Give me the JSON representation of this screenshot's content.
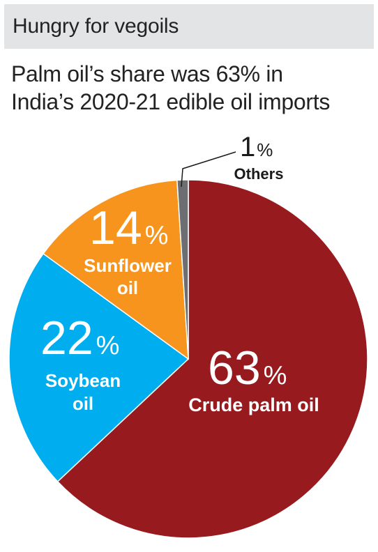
{
  "title": "Hungry for vegoils",
  "subtitle_line1": "Palm oil’s share was 63% in",
  "subtitle_line2": "India’s 2020-21 edible oil imports",
  "chart_data": {
    "type": "pie",
    "title": "Hungry for vegoils",
    "subtitle": "Palm oil’s share was 63% in India’s 2020-21 edible oil imports",
    "unit": "%",
    "slices": [
      {
        "label": "Crude palm oil",
        "value": 63,
        "value_label": "63",
        "color": "#971a1e"
      },
      {
        "label": "Soybean oil",
        "value": 22,
        "value_label": "22",
        "color": "#00adef"
      },
      {
        "label": "Sunflower oil",
        "value": 14,
        "value_label": "14",
        "color": "#f7941d"
      },
      {
        "label": "Others",
        "value": 1,
        "value_label": "1",
        "color": "#6d6e71"
      }
    ]
  },
  "labels": {
    "palm_value": "63",
    "palm_pct": "%",
    "palm_name": "Crude palm oil",
    "soy_value": "22",
    "soy_pct": "%",
    "soy_line1": "Soybean",
    "soy_line2": "oil",
    "sun_value": "14",
    "sun_pct": "%",
    "sun_line1": "Sunflower",
    "sun_line2": "oil",
    "oth_value": "1",
    "oth_pct": "%",
    "oth_name": "Others"
  }
}
